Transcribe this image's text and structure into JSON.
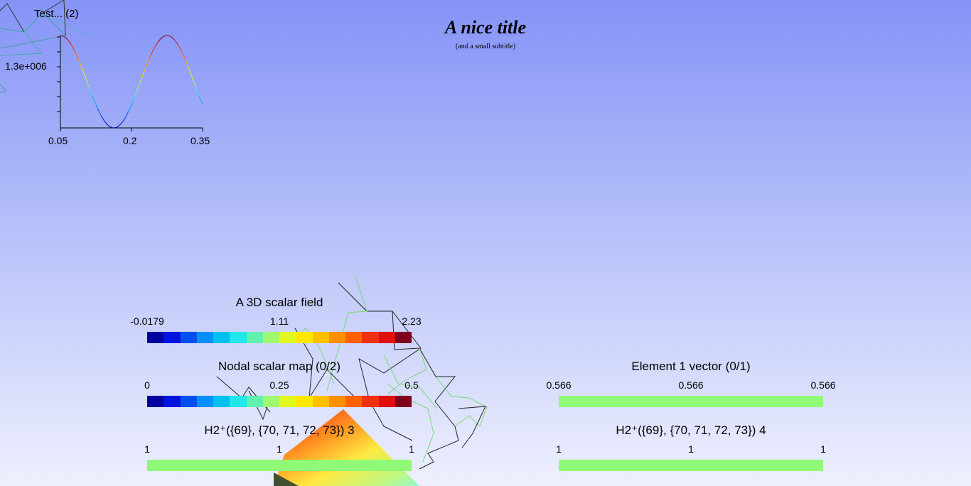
{
  "title": "A nice title",
  "subtitle": "(and a small subtitle)",
  "plot": {
    "title": "Test... (2)",
    "y_tick": "1.3e+006",
    "x_ticks": [
      "0.05",
      "0.2",
      "0.35"
    ]
  },
  "colorbars": [
    {
      "title": "A 3D scalar field",
      "labels": [
        "-0.0179",
        "1.11",
        "2.23"
      ],
      "kind": "gradient"
    },
    {
      "title": "Nodal scalar map (0/2)",
      "labels": [
        "0",
        "0.25",
        "0.5"
      ],
      "kind": "gradient"
    },
    {
      "title": "Element 1 vector (0/1)",
      "labels": [
        "0.566",
        "0.566",
        "0.566"
      ],
      "kind": "flat"
    },
    {
      "title": "H2⁺({69}, {70, 71, 72, 73}) 3",
      "labels": [
        "1",
        "1",
        "1"
      ],
      "kind": "flat"
    },
    {
      "title": "H2⁺({69}, {70, 71, 72, 73}) 4",
      "labels": [
        "1",
        "1",
        "1"
      ],
      "kind": "flat"
    }
  ],
  "colors": {
    "palette": [
      "#0000a0",
      "#0014e0",
      "#0050f0",
      "#0090f8",
      "#00c0f0",
      "#20e8e8",
      "#60f0b0",
      "#a0f870",
      "#e0f820",
      "#ffe800",
      "#ffc000",
      "#ff9000",
      "#ff6000",
      "#f03010",
      "#e01010",
      "#800020"
    ],
    "flat": "#90fa78"
  }
}
